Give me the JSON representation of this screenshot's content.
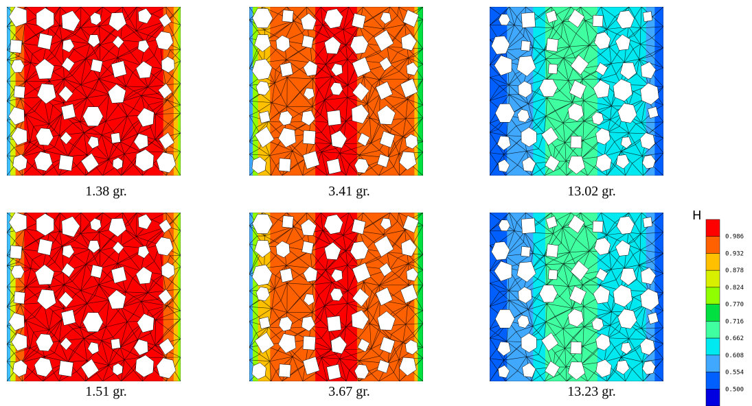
{
  "captions": [
    "1.38 gr.",
    "3.41 gr.",
    "13.02 gr.",
    "1.51 gr.",
    "3.67 gr.",
    "13.23 gr."
  ],
  "colorbar": {
    "title": "H",
    "labels": [
      "0.986",
      "0.932",
      "0.878",
      "0.824",
      "0.770",
      "0.716",
      "0.662",
      "0.608",
      "0.554",
      "0.500"
    ],
    "colors": [
      "#ff0000",
      "#ff6000",
      "#ffc000",
      "#d8f000",
      "#90ff00",
      "#00e040",
      "#40ffa0",
      "#00e8f0",
      "#40a8ff",
      "#0060ff",
      "#0000e0"
    ]
  }
}
